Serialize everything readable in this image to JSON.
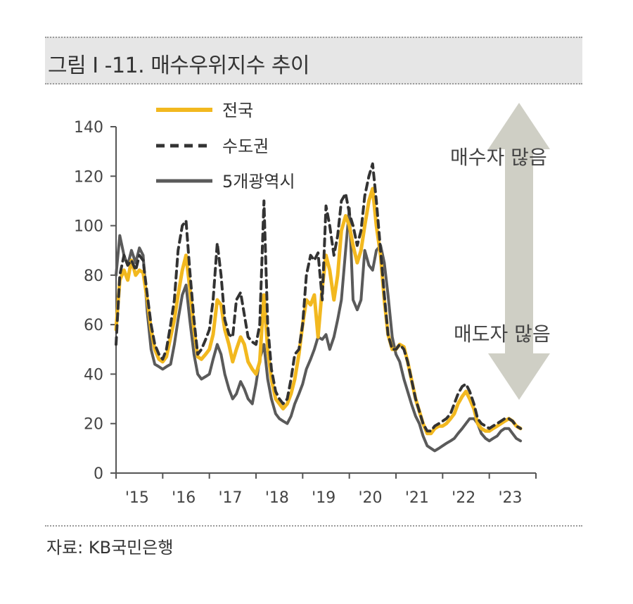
{
  "figure": {
    "title": "그림 I -11. 매수우위지수 추이",
    "source": "자료: KB국민은행"
  },
  "colors": {
    "nationwide": "#f2b81f",
    "capital": "#333333",
    "metro5": "#5a5a5a",
    "arrow": "#cfcfc5",
    "title_bg": "#e6e6e6"
  },
  "annotations": {
    "top": "매수자 많음",
    "bottom": "매도자 많음"
  },
  "chart_data": {
    "type": "line",
    "title": "",
    "xlabel": "",
    "ylabel": "",
    "ylim": [
      0,
      140
    ],
    "yticks": [
      0,
      20,
      40,
      60,
      80,
      100,
      120,
      140
    ],
    "xlim": [
      2015,
      2024
    ],
    "xticks": [
      "'15",
      "'16",
      "'17",
      "'18",
      "'19",
      "'20",
      "'21",
      "'22",
      "'23"
    ],
    "legend_position": "top-center",
    "grid": false,
    "series": [
      {
        "name": "전국",
        "style": "solid",
        "x": [
          2015.0,
          2015.08,
          2015.17,
          2015.25,
          2015.33,
          2015.42,
          2015.5,
          2015.58,
          2015.67,
          2015.75,
          2015.83,
          2015.92,
          2016.0,
          2016.08,
          2016.17,
          2016.25,
          2016.33,
          2016.42,
          2016.5,
          2016.58,
          2016.67,
          2016.75,
          2016.83,
          2016.92,
          2017.0,
          2017.08,
          2017.17,
          2017.25,
          2017.33,
          2017.42,
          2017.5,
          2017.58,
          2017.67,
          2017.75,
          2017.83,
          2017.92,
          2018.0,
          2018.08,
          2018.17,
          2018.25,
          2018.33,
          2018.42,
          2018.5,
          2018.58,
          2018.67,
          2018.75,
          2018.83,
          2018.92,
          2019.0,
          2019.08,
          2019.17,
          2019.25,
          2019.33,
          2019.42,
          2019.5,
          2019.58,
          2019.67,
          2019.75,
          2019.83,
          2019.92,
          2020.0,
          2020.08,
          2020.17,
          2020.25,
          2020.33,
          2020.42,
          2020.5,
          2020.58,
          2020.67,
          2020.75,
          2020.83,
          2020.92,
          2021.0,
          2021.08,
          2021.17,
          2021.25,
          2021.33,
          2021.42,
          2021.5,
          2021.58,
          2021.67,
          2021.75,
          2021.83,
          2021.92,
          2022.0,
          2022.08,
          2022.17,
          2022.25,
          2022.33,
          2022.42,
          2022.5,
          2022.58,
          2022.67,
          2022.75,
          2022.83,
          2022.92,
          2023.0,
          2023.08,
          2023.17,
          2023.25,
          2023.33,
          2023.42,
          2023.5,
          2023.58,
          2023.67
        ],
        "values": [
          58,
          78,
          82,
          78,
          86,
          80,
          82,
          81,
          70,
          58,
          50,
          46,
          45,
          47,
          55,
          62,
          72,
          82,
          88,
          75,
          58,
          47,
          46,
          48,
          50,
          56,
          70,
          68,
          58,
          52,
          45,
          50,
          55,
          52,
          45,
          42,
          40,
          45,
          72,
          50,
          38,
          30,
          28,
          26,
          28,
          32,
          38,
          48,
          60,
          70,
          68,
          72,
          55,
          75,
          88,
          82,
          70,
          80,
          98,
          104,
          100,
          92,
          85,
          90,
          100,
          110,
          115,
          100,
          88,
          70,
          56,
          50,
          50,
          52,
          51,
          45,
          38,
          30,
          25,
          20,
          16,
          16,
          18,
          19,
          19,
          20,
          22,
          24,
          28,
          31,
          33,
          30,
          26,
          20,
          18,
          17,
          17,
          18,
          19,
          20,
          21,
          22,
          21,
          19,
          18
        ]
      },
      {
        "name": "수도권",
        "style": "dashed",
        "x": [
          2015.0,
          2015.08,
          2015.17,
          2015.25,
          2015.33,
          2015.42,
          2015.5,
          2015.58,
          2015.67,
          2015.75,
          2015.83,
          2015.92,
          2016.0,
          2016.08,
          2016.17,
          2016.25,
          2016.33,
          2016.42,
          2016.5,
          2016.58,
          2016.67,
          2016.75,
          2016.83,
          2016.92,
          2017.0,
          2017.08,
          2017.17,
          2017.25,
          2017.33,
          2017.42,
          2017.5,
          2017.58,
          2017.67,
          2017.75,
          2017.83,
          2017.92,
          2018.0,
          2018.08,
          2018.17,
          2018.25,
          2018.33,
          2018.42,
          2018.5,
          2018.58,
          2018.67,
          2018.75,
          2018.83,
          2018.92,
          2019.0,
          2019.08,
          2019.17,
          2019.25,
          2019.33,
          2019.42,
          2019.5,
          2019.58,
          2019.67,
          2019.75,
          2019.83,
          2019.92,
          2020.0,
          2020.08,
          2020.17,
          2020.25,
          2020.33,
          2020.42,
          2020.5,
          2020.58,
          2020.67,
          2020.75,
          2020.83,
          2020.92,
          2021.0,
          2021.08,
          2021.17,
          2021.25,
          2021.33,
          2021.42,
          2021.5,
          2021.58,
          2021.67,
          2021.75,
          2021.83,
          2021.92,
          2022.0,
          2022.08,
          2022.17,
          2022.25,
          2022.33,
          2022.42,
          2022.5,
          2022.58,
          2022.67,
          2022.75,
          2022.83,
          2022.92,
          2023.0,
          2023.08,
          2023.17,
          2023.25,
          2023.33,
          2023.42,
          2023.5,
          2023.58,
          2023.67
        ],
        "values": [
          52,
          80,
          88,
          84,
          86,
          82,
          88,
          86,
          72,
          60,
          52,
          48,
          46,
          50,
          60,
          70,
          90,
          100,
          102,
          82,
          62,
          48,
          50,
          54,
          58,
          70,
          93,
          80,
          62,
          56,
          55,
          70,
          73,
          64,
          55,
          53,
          52,
          60,
          110,
          60,
          42,
          33,
          30,
          28,
          30,
          38,
          48,
          50,
          60,
          80,
          88,
          86,
          89,
          70,
          108,
          100,
          88,
          96,
          110,
          113,
          105,
          100,
          92,
          98,
          112,
          120,
          125,
          110,
          90,
          72,
          56,
          50,
          50,
          52,
          50,
          45,
          38,
          30,
          25,
          20,
          17,
          17,
          19,
          20,
          21,
          22,
          24,
          28,
          32,
          35,
          36,
          33,
          28,
          22,
          20,
          19,
          18,
          19,
          20,
          21,
          22,
          22,
          21,
          19,
          18
        ]
      },
      {
        "name": "5개광역시",
        "style": "solid",
        "x": [
          2015.0,
          2015.08,
          2015.17,
          2015.25,
          2015.33,
          2015.42,
          2015.5,
          2015.58,
          2015.67,
          2015.75,
          2015.83,
          2015.92,
          2016.0,
          2016.08,
          2016.17,
          2016.25,
          2016.33,
          2016.42,
          2016.5,
          2016.58,
          2016.67,
          2016.75,
          2016.83,
          2016.92,
          2017.0,
          2017.08,
          2017.17,
          2017.25,
          2017.33,
          2017.42,
          2017.5,
          2017.58,
          2017.67,
          2017.75,
          2017.83,
          2017.92,
          2018.0,
          2018.08,
          2018.17,
          2018.25,
          2018.33,
          2018.42,
          2018.5,
          2018.58,
          2018.67,
          2018.75,
          2018.83,
          2018.92,
          2019.0,
          2019.08,
          2019.17,
          2019.25,
          2019.33,
          2019.42,
          2019.5,
          2019.58,
          2019.67,
          2019.75,
          2019.83,
          2019.92,
          2020.0,
          2020.08,
          2020.17,
          2020.25,
          2020.33,
          2020.42,
          2020.5,
          2020.58,
          2020.67,
          2020.75,
          2020.83,
          2020.92,
          2021.0,
          2021.08,
          2021.17,
          2021.25,
          2021.33,
          2021.42,
          2021.5,
          2021.58,
          2021.67,
          2021.75,
          2021.83,
          2021.92,
          2022.0,
          2022.08,
          2022.17,
          2022.25,
          2022.33,
          2022.42,
          2022.5,
          2022.58,
          2022.67,
          2022.75,
          2022.83,
          2022.92,
          2023.0,
          2023.08,
          2023.17,
          2023.25,
          2023.33,
          2023.42,
          2023.5,
          2023.58,
          2023.67
        ],
        "values": [
          80,
          96,
          88,
          84,
          90,
          85,
          91,
          88,
          65,
          50,
          44,
          43,
          42,
          43,
          44,
          52,
          62,
          72,
          76,
          62,
          48,
          40,
          38,
          39,
          40,
          46,
          52,
          48,
          40,
          34,
          30,
          32,
          37,
          34,
          30,
          28,
          36,
          46,
          52,
          38,
          30,
          24,
          22,
          21,
          20,
          23,
          28,
          32,
          36,
          42,
          46,
          50,
          55,
          54,
          56,
          50,
          55,
          62,
          70,
          90,
          107,
          70,
          66,
          70,
          90,
          84,
          82,
          90,
          92,
          85,
          72,
          55,
          48,
          45,
          38,
          33,
          28,
          23,
          20,
          15,
          11,
          10,
          9,
          10,
          11,
          12,
          13,
          14,
          16,
          18,
          20,
          22,
          22,
          20,
          16,
          14,
          13,
          14,
          15,
          17,
          18,
          18,
          16,
          14,
          13
        ]
      }
    ]
  }
}
